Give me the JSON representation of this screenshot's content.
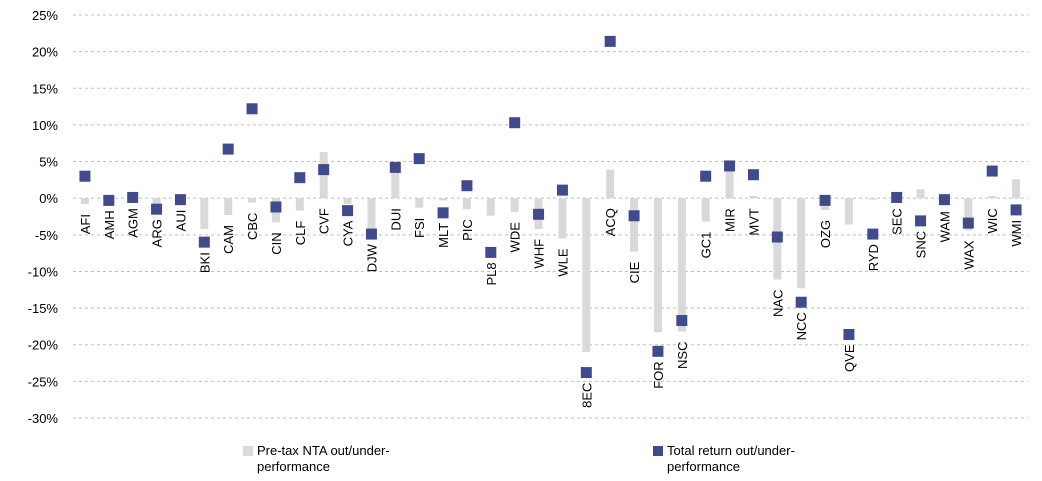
{
  "chart_data": {
    "type": "bar",
    "categories": [
      "AFI",
      "AMH",
      "AGM",
      "ARG",
      "AUI",
      "BKI",
      "CAM",
      "CBC",
      "CIN",
      "CLF",
      "CVF",
      "CYA",
      "DJW",
      "DUI",
      "FSI",
      "MLT",
      "PIC",
      "PL8",
      "WDE",
      "WHF",
      "WLE",
      "8EC",
      "ACQ",
      "CIE",
      "FOR",
      "NSC",
      "GC1",
      "MIR",
      "MVT",
      "NAC",
      "NCC",
      "OZG",
      "QVE",
      "RYD",
      "SEC",
      "SNC",
      "WAM",
      "WAX",
      "WIC",
      "WMI"
    ],
    "series": [
      {
        "name": "Pre-tax NTA out/under-performance",
        "type": "bar",
        "color": "#d9d9d9",
        "values": [
          -0.8,
          -0.3,
          0.3,
          -1.0,
          0,
          -4.2,
          -2.3,
          -0.6,
          -3.3,
          -1.7,
          6.3,
          -0.8,
          -4.5,
          3.5,
          -1.3,
          -0.3,
          -1.5,
          -2.4,
          -1.9,
          -4.2,
          -5.5,
          -21.0,
          3.9,
          -7.3,
          -18.3,
          -18.2,
          -3.2,
          3.7,
          0.3,
          -11.1,
          -12.3,
          -1.6,
          -3.6,
          -0.2,
          0.2,
          1.2,
          -0.4,
          -4.4,
          0.3,
          2.6
        ]
      },
      {
        "name": "Total return out/under-performance",
        "type": "scatter",
        "color": "#404a8c",
        "values": [
          3.0,
          -0.3,
          0.1,
          -1.5,
          -0.2,
          -6.0,
          6.7,
          12.2,
          -1.2,
          2.8,
          3.9,
          -1.7,
          -4.9,
          4.2,
          5.4,
          -2.0,
          1.7,
          -7.4,
          10.3,
          -2.2,
          1.1,
          -23.8,
          21.4,
          -2.4,
          -20.9,
          -16.7,
          3.0,
          4.4,
          3.2,
          -5.3,
          -14.2,
          -0.3,
          -18.6,
          -4.9,
          0.1,
          -3.1,
          -0.2,
          -3.4,
          3.7,
          -1.6
        ]
      }
    ],
    "ylim": [
      -30,
      25
    ],
    "yticks": [
      {
        "value": 25,
        "label": "25%"
      },
      {
        "value": 20,
        "label": "20%"
      },
      {
        "value": 15,
        "label": "15%"
      },
      {
        "value": 10,
        "label": "10%"
      },
      {
        "value": 5,
        "label": "5%"
      },
      {
        "value": 0,
        "label": "0%"
      },
      {
        "value": -5,
        "label": "-5%"
      },
      {
        "value": -10,
        "label": "-10%"
      },
      {
        "value": -15,
        "label": "-15%"
      },
      {
        "value": -20,
        "label": "-20%"
      },
      {
        "value": -25,
        "label": "-25%"
      },
      {
        "value": -30,
        "label": "-30%"
      }
    ],
    "grid": true
  }
}
